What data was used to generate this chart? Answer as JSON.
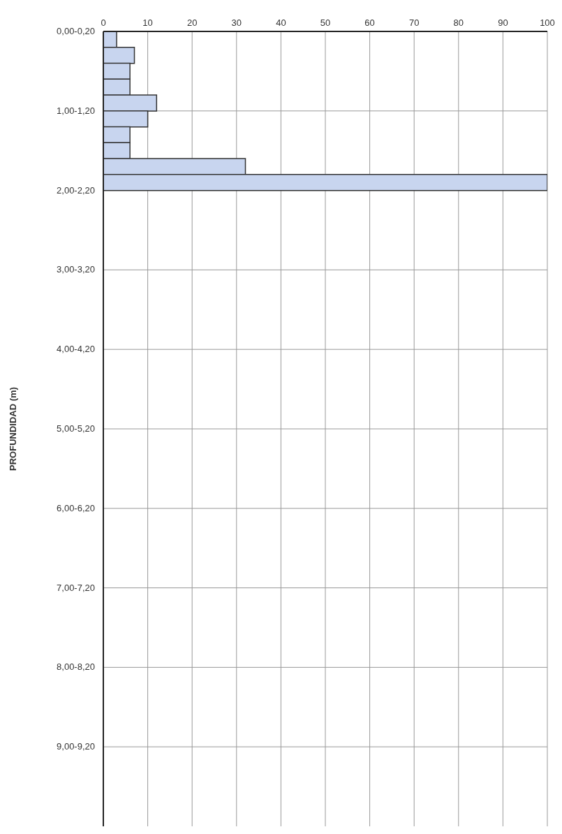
{
  "chart_data": {
    "type": "bar",
    "orientation": "horizontal",
    "ylabel": "PROFUNDIDAD (m)",
    "categories": [
      "0,00-0,20",
      null,
      null,
      null,
      null,
      "1,00-1,20",
      null,
      null,
      null,
      null,
      "2,00-2,20",
      null,
      null,
      null,
      null,
      "3,00-3,20",
      null,
      null,
      null,
      null,
      "4,00-4,20",
      null,
      null,
      null,
      null,
      "5,00-5,20",
      null,
      null,
      null,
      null,
      "6,00-6,20",
      null,
      null,
      null,
      null,
      "7,00-7,20",
      null,
      null,
      null,
      null,
      "8,00-8,20",
      null,
      null,
      null,
      null,
      "9,00-9,20",
      null,
      null,
      null,
      null
    ],
    "values": [
      3,
      7,
      6,
      6,
      12,
      10,
      6,
      6,
      32,
      100,
      null,
      null,
      null,
      null,
      null,
      null,
      null,
      null,
      null,
      null,
      null,
      null,
      null,
      null,
      null,
      null,
      null,
      null,
      null,
      null,
      null,
      null,
      null,
      null,
      null,
      null,
      null,
      null,
      null,
      null,
      null,
      null,
      null,
      null,
      null,
      null,
      null,
      null,
      null,
      null
    ],
    "color": "#c8d5ef",
    "xlim": [
      0,
      100
    ],
    "xticks": [
      0,
      10,
      20,
      30,
      40,
      50,
      60,
      70,
      80,
      90,
      100
    ],
    "grid": true
  }
}
